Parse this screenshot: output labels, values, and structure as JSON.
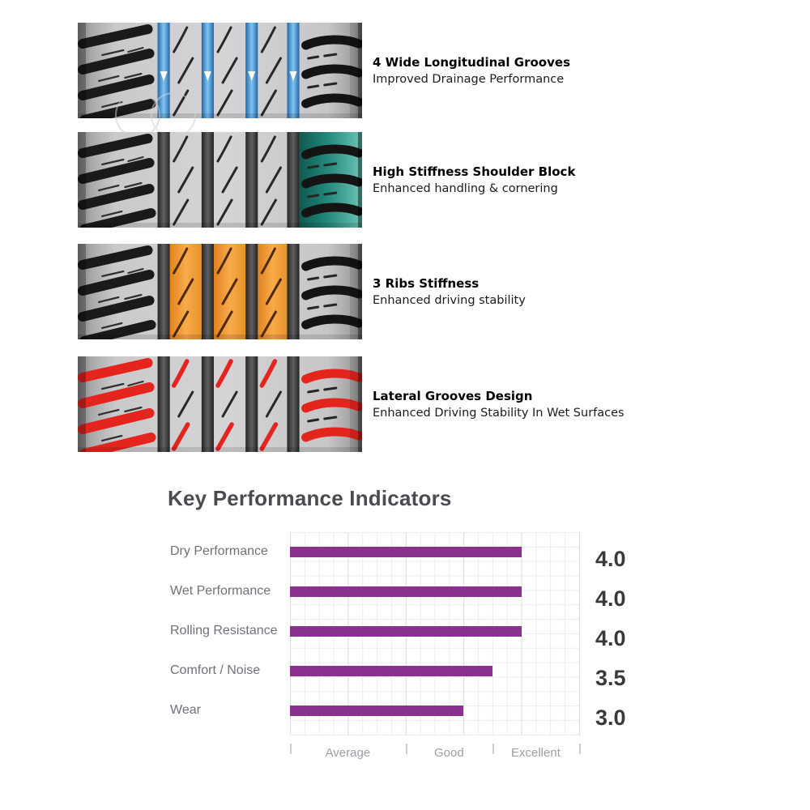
{
  "page": {
    "background": "#ffffff"
  },
  "features": [
    {
      "title": "4 Wide Longitudinal Grooves",
      "subtitle": "Improved Drainage Performance",
      "highlight": "blue-grooves",
      "highlight_color": "#4f9bd4"
    },
    {
      "title": "High Stiffness Shoulder Block",
      "subtitle": "Enhanced handling & cornering",
      "highlight": "teal-shoulder",
      "highlight_color": "#23897b"
    },
    {
      "title": "3 Ribs Stiffness",
      "subtitle": "Enhanced driving stability",
      "highlight": "orange-ribs",
      "highlight_color": "#f6a847"
    },
    {
      "title": "Lateral Grooves Design",
      "subtitle": "Enhanced Driving Stability In Wet Surfaces",
      "highlight": "red-lateral",
      "highlight_color": "#e6241e"
    }
  ],
  "chart_data": {
    "type": "bar",
    "orientation": "horizontal",
    "title": "Key Performance Indicators",
    "categories": [
      "Dry Performance",
      "Wet Performance",
      "Rolling Resistance",
      "Comfort / Noise",
      "Wear"
    ],
    "values": [
      4.0,
      4.0,
      4.0,
      3.5,
      3.0
    ],
    "value_labels": [
      "4.0",
      "4.0",
      "4.0",
      "3.5",
      "3.0"
    ],
    "xlim": [
      0,
      5
    ],
    "band_boundaries": [
      0,
      2,
      3.5,
      5
    ],
    "x_axis_labels": [
      "Average",
      "Good",
      "Excellent"
    ],
    "bar_color": "#8a3190",
    "grid": true,
    "legend": "none"
  }
}
